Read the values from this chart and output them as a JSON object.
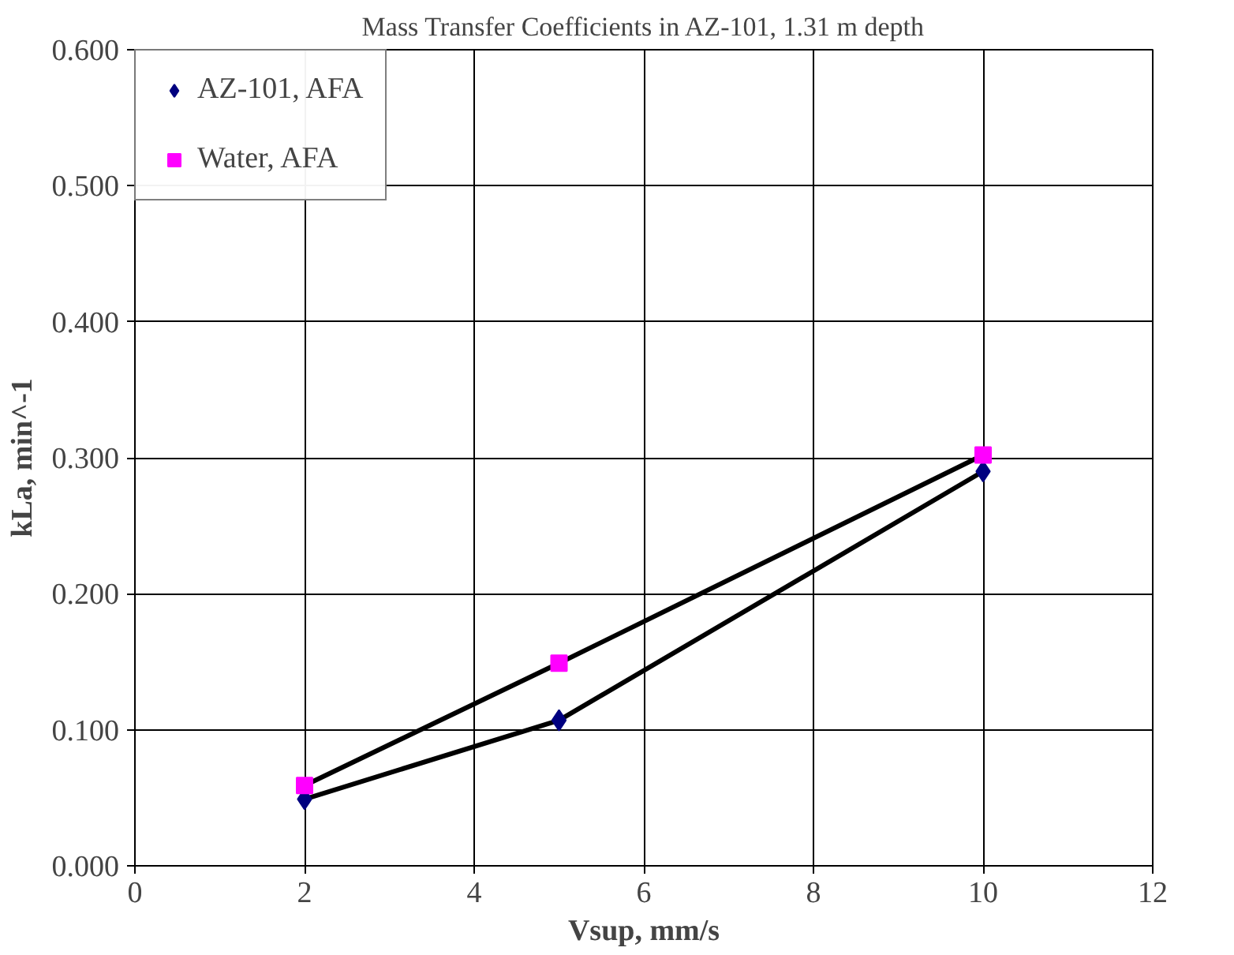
{
  "chart_data": {
    "type": "line",
    "title": "Mass Transfer Coefficients in AZ-101, 1.31 m depth",
    "xlabel": "Vsup, mm/s",
    "ylabel": "kLa, min^-1",
    "x": [
      2,
      5,
      10
    ],
    "series": [
      {
        "name": "AZ-101, AFA",
        "color": "#000080",
        "marker": "diamond",
        "values": [
          0.049,
          0.107,
          0.29
        ]
      },
      {
        "name": "Water, AFA",
        "color": "#ff00ff",
        "marker": "square",
        "values": [
          0.059,
          0.149,
          0.302
        ]
      }
    ],
    "xlim": [
      0,
      12
    ],
    "xticks": [
      0,
      2,
      4,
      6,
      8,
      10,
      12
    ],
    "ylim": [
      0,
      0.6
    ],
    "yticks": [
      {
        "value": 0,
        "label": "0.000"
      },
      {
        "value": 0.1,
        "label": "0.100"
      },
      {
        "value": 0.2,
        "label": "0.200"
      },
      {
        "value": 0.3,
        "label": "0.300"
      },
      {
        "value": 0.4,
        "label": "0.400"
      },
      {
        "value": 0.5,
        "label": "0.500"
      },
      {
        "value": 0.6,
        "label": "0.600"
      }
    ],
    "grid": true,
    "legend": "top left",
    "line_style": "solid"
  }
}
